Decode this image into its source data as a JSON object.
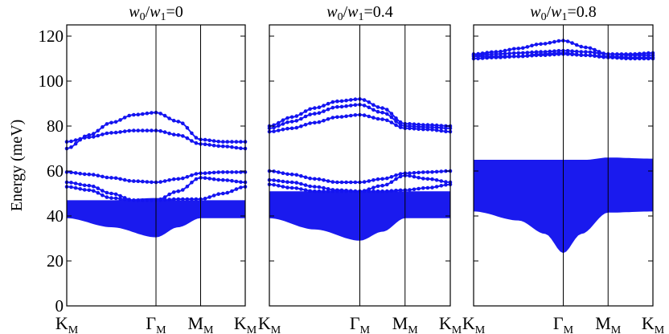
{
  "chart_data": {
    "type": "line",
    "ylabel": "Energy (meV)",
    "ylim": [
      0,
      125
    ],
    "yticks": [
      0,
      20,
      40,
      60,
      80,
      100,
      120
    ],
    "kpath": [
      {
        "main": "K",
        "sub": "M",
        "pos": 0
      },
      {
        "main": "Γ",
        "sub": "M",
        "pos": 1
      },
      {
        "main": "M",
        "sub": "M",
        "pos": 1.5
      },
      {
        "main": "K",
        "sub": "M",
        "pos": 2
      }
    ],
    "color": "#1414ee",
    "panels": [
      {
        "title_parts": [
          "w",
          "0",
          "/",
          "w",
          "1",
          "=0"
        ],
        "continuum": {
          "top": [
            [
              0,
              47
            ],
            [
              0.5,
              47
            ],
            [
              1,
              48
            ],
            [
              1.25,
              47
            ],
            [
              1.5,
              47
            ],
            [
              2,
              47
            ]
          ],
          "bottom": [
            [
              0,
              39
            ],
            [
              0.5,
              35
            ],
            [
              1,
              30.5
            ],
            [
              1.25,
              35
            ],
            [
              1.5,
              39
            ],
            [
              2,
              39
            ]
          ]
        },
        "bands": [
          {
            "name": "b1",
            "points": [
              [
                0,
                70
              ],
              [
                0.25,
                76
              ],
              [
                0.5,
                81.5
              ],
              [
                0.75,
                85
              ],
              [
                1,
                86
              ],
              [
                1.25,
                82
              ],
              [
                1.5,
                74
              ],
              [
                1.75,
                73
              ],
              [
                2,
                73
              ]
            ]
          },
          {
            "name": "b2",
            "points": [
              [
                0,
                73
              ],
              [
                0.25,
                75
              ],
              [
                0.5,
                77
              ],
              [
                0.75,
                78
              ],
              [
                1,
                78
              ],
              [
                1.25,
                76
              ],
              [
                1.5,
                72
              ],
              [
                1.75,
                71
              ],
              [
                2,
                70
              ]
            ]
          },
          {
            "name": "b3",
            "points": [
              [
                0,
                59.5
              ],
              [
                0.25,
                58.5
              ],
              [
                0.5,
                57
              ],
              [
                0.75,
                55.5
              ],
              [
                1,
                55
              ],
              [
                1.25,
                56.5
              ],
              [
                1.5,
                59
              ],
              [
                1.75,
                59.5
              ],
              [
                2,
                59.5
              ]
            ]
          },
          {
            "name": "b4",
            "points": [
              [
                0,
                55
              ],
              [
                0.25,
                53.5
              ],
              [
                0.5,
                50
              ],
              [
                0.75,
                47
              ],
              [
                1,
                47
              ],
              [
                1.25,
                51
              ],
              [
                1.5,
                57
              ],
              [
                1.75,
                56
              ],
              [
                2,
                55
              ]
            ]
          },
          {
            "name": "b5",
            "points": [
              [
                0,
                53
              ],
              [
                0.25,
                51.5
              ],
              [
                0.5,
                48
              ],
              [
                0.75,
                47
              ],
              [
                1,
                47
              ],
              [
                1.25,
                47.5
              ],
              [
                1.5,
                47.5
              ],
              [
                1.75,
                50
              ],
              [
                2,
                53
              ]
            ]
          }
        ]
      },
      {
        "title_parts": [
          "w",
          "0",
          "/",
          "w",
          "1",
          "=0.4"
        ],
        "continuum": {
          "top": [
            [
              0,
              51
            ],
            [
              0.5,
              51
            ],
            [
              1,
              51
            ],
            [
              1.25,
              51
            ],
            [
              1.5,
              51
            ],
            [
              2,
              51
            ]
          ],
          "bottom": [
            [
              0,
              39
            ],
            [
              0.5,
              34
            ],
            [
              1,
              29
            ],
            [
              1.25,
              33
            ],
            [
              1.5,
              39
            ],
            [
              2,
              39
            ]
          ]
        },
        "bands": [
          {
            "name": "b1",
            "points": [
              [
                0,
                80
              ],
              [
                0.25,
                84
              ],
              [
                0.5,
                88
              ],
              [
                0.75,
                91
              ],
              [
                1,
                92
              ],
              [
                1.25,
                88
              ],
              [
                1.5,
                81
              ],
              [
                1.75,
                80.5
              ],
              [
                2,
                80
              ]
            ]
          },
          {
            "name": "b2",
            "points": [
              [
                0,
                79
              ],
              [
                0.25,
                82
              ],
              [
                0.5,
                85.5
              ],
              [
                0.75,
                88.5
              ],
              [
                1,
                89.5
              ],
              [
                1.25,
                86
              ],
              [
                1.5,
                80
              ],
              [
                1.75,
                79.5
              ],
              [
                2,
                79
              ]
            ]
          },
          {
            "name": "b3",
            "points": [
              [
                0,
                77.5
              ],
              [
                0.25,
                79
              ],
              [
                0.5,
                81.5
              ],
              [
                0.75,
                84
              ],
              [
                1,
                85
              ],
              [
                1.25,
                83
              ],
              [
                1.5,
                79
              ],
              [
                1.75,
                78.5
              ],
              [
                2,
                77.5
              ]
            ]
          },
          {
            "name": "b4",
            "points": [
              [
                0,
                60
              ],
              [
                0.25,
                58.5
              ],
              [
                0.5,
                56.5
              ],
              [
                0.75,
                55
              ],
              [
                1,
                55
              ],
              [
                1.25,
                56.5
              ],
              [
                1.5,
                59
              ],
              [
                1.75,
                59.5
              ],
              [
                2,
                60
              ]
            ]
          },
          {
            "name": "b5",
            "points": [
              [
                0,
                56
              ],
              [
                0.25,
                55
              ],
              [
                0.5,
                53
              ],
              [
                0.75,
                51.5
              ],
              [
                1,
                51
              ],
              [
                1.25,
                53.5
              ],
              [
                1.5,
                58
              ],
              [
                1.75,
                56.5
              ],
              [
                2,
                55
              ]
            ]
          },
          {
            "name": "b6",
            "points": [
              [
                0,
                54
              ],
              [
                0.25,
                52.5
              ],
              [
                0.5,
                51
              ],
              [
                0.75,
                51
              ],
              [
                1,
                51
              ],
              [
                1.25,
                51
              ],
              [
                1.5,
                51.5
              ],
              [
                1.75,
                52.5
              ],
              [
                2,
                54
              ]
            ]
          }
        ]
      },
      {
        "title_parts": [
          "w",
          "0",
          "/",
          "w",
          "1",
          "=0.8"
        ],
        "continuum": {
          "top": [
            [
              0,
              65
            ],
            [
              0.5,
              65
            ],
            [
              1,
              65
            ],
            [
              1.25,
              65
            ],
            [
              1.5,
              66
            ],
            [
              2,
              65.5
            ]
          ],
          "bottom": [
            [
              0,
              42
            ],
            [
              0.5,
              38
            ],
            [
              0.8,
              32
            ],
            [
              1,
              23.5
            ],
            [
              1.2,
              32
            ],
            [
              1.5,
              41.5
            ],
            [
              2,
              42
            ]
          ]
        },
        "bands": [
          {
            "name": "b1",
            "points": [
              [
                0,
                112
              ],
              [
                0.25,
                113
              ],
              [
                0.5,
                114.5
              ],
              [
                0.75,
                116.5
              ],
              [
                1,
                118
              ],
              [
                1.25,
                115
              ],
              [
                1.5,
                112
              ],
              [
                1.75,
                112
              ],
              [
                2,
                112.5
              ]
            ]
          },
          {
            "name": "b2",
            "points": [
              [
                0,
                111.5
              ],
              [
                0.25,
                112
              ],
              [
                0.5,
                112.5
              ],
              [
                0.75,
                113
              ],
              [
                1,
                113.5
              ],
              [
                1.25,
                113
              ],
              [
                1.5,
                112
              ],
              [
                1.75,
                111.5
              ],
              [
                2,
                111.5
              ]
            ]
          },
          {
            "name": "b3",
            "points": [
              [
                0,
                111
              ],
              [
                0.25,
                111
              ],
              [
                0.5,
                111
              ],
              [
                0.75,
                111.5
              ],
              [
                1,
                112
              ],
              [
                1.25,
                111.5
              ],
              [
                1.5,
                111
              ],
              [
                1.75,
                110.5
              ],
              [
                2,
                110.5
              ]
            ]
          },
          {
            "name": "b4",
            "points": [
              [
                0,
                110
              ],
              [
                0.25,
                110.5
              ],
              [
                0.5,
                111
              ],
              [
                0.75,
                112
              ],
              [
                1,
                112.5
              ],
              [
                1.25,
                111.5
              ],
              [
                1.5,
                110.5
              ],
              [
                1.75,
                110
              ],
              [
                2,
                110
              ]
            ]
          }
        ]
      }
    ]
  }
}
